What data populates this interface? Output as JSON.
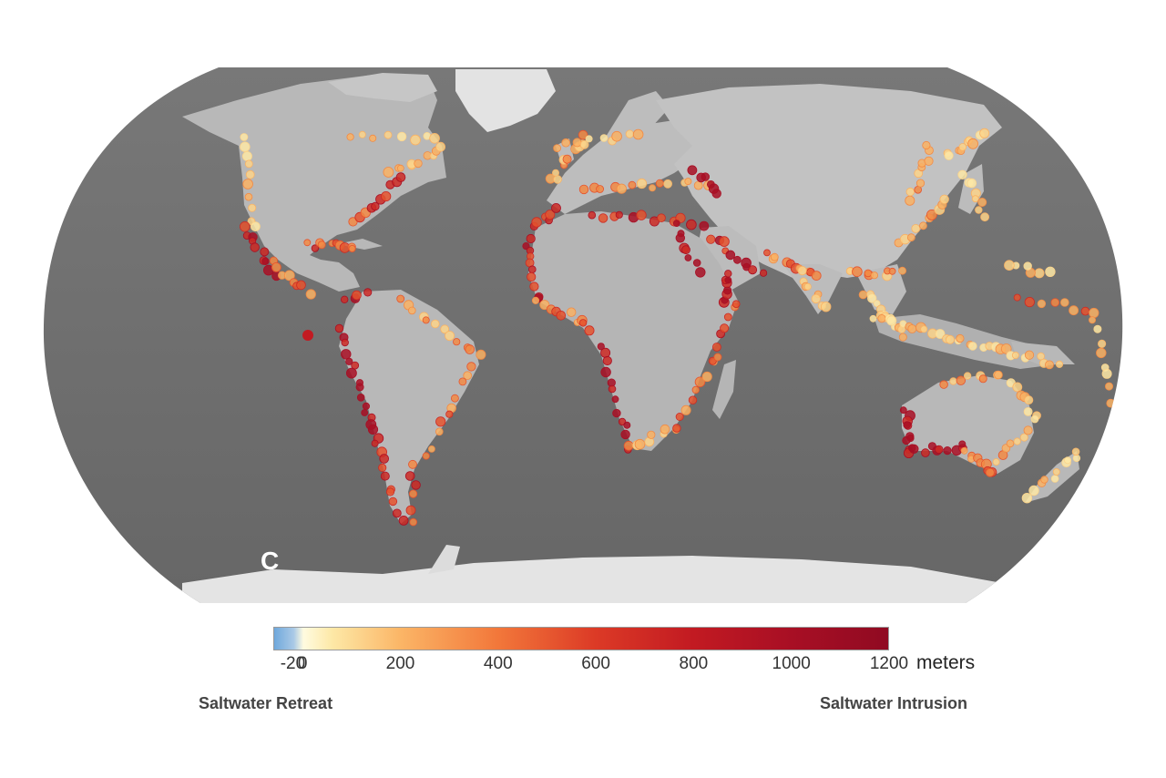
{
  "panel_label": "C",
  "legend": {
    "unit": "meters",
    "ticks": [
      "-20",
      "0",
      "200",
      "400",
      "600",
      "800",
      "1000",
      "1200"
    ],
    "tick_values": [
      -20,
      0,
      200,
      400,
      600,
      800,
      1000,
      1200
    ],
    "range": [
      -60,
      1200
    ],
    "left_label": "Saltwater Retreat",
    "right_label": "Saltwater Intrusion",
    "color_stops": [
      {
        "value": -60,
        "color": "#6fa8dc"
      },
      {
        "value": -20,
        "color": "#a9c9e6"
      },
      {
        "value": 0,
        "color": "#fffbe0"
      },
      {
        "value": 60,
        "color": "#fde8a6"
      },
      {
        "value": 200,
        "color": "#fbb566"
      },
      {
        "value": 400,
        "color": "#f2773a"
      },
      {
        "value": 600,
        "color": "#dc3a26"
      },
      {
        "value": 800,
        "color": "#c21a22"
      },
      {
        "value": 1000,
        "color": "#a80f24"
      },
      {
        "value": 1200,
        "color": "#900a22"
      }
    ]
  },
  "colors": {
    "ocean": "#6e6e6e",
    "land": "#b5b5b5",
    "ice": "#e6e6e6"
  }
}
